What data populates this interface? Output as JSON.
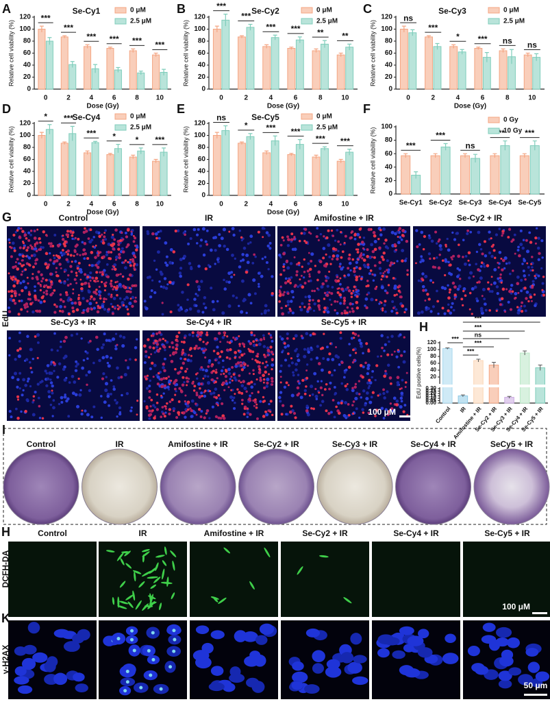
{
  "chart_data": [
    {
      "type": "bar",
      "panel": "A",
      "title": "Se-Cy1",
      "ylabel": "Relative cell viability (%)",
      "xlabel": "Dose (Gy)",
      "categories": [
        "0",
        "2",
        "4",
        "6",
        "8",
        "10"
      ],
      "series": [
        {
          "name": "0 μM",
          "color": "#f4a582",
          "values": [
            100,
            87,
            71,
            68,
            64,
            57
          ],
          "errors": [
            5,
            2,
            3,
            2,
            3,
            3
          ]
        },
        {
          "name": "2.5 μM",
          "color": "#7fcdbb",
          "values": [
            80,
            41,
            34,
            32,
            27,
            28
          ],
          "errors": [
            6,
            5,
            7,
            4,
            3,
            5
          ]
        }
      ],
      "annotations": [
        "***",
        "***",
        "***",
        "***",
        "***",
        "***"
      ],
      "ylim": [
        0,
        120
      ],
      "yticks": [
        0,
        20,
        40,
        60,
        80,
        100,
        120
      ],
      "legend": "upper right"
    },
    {
      "type": "bar",
      "panel": "B",
      "title": "Se-Cy2",
      "ylabel": "Relative cell viability (%)",
      "xlabel": "Dose (Gy)",
      "categories": [
        "0",
        "2",
        "4",
        "6",
        "8",
        "10"
      ],
      "series": [
        {
          "name": "0 μM",
          "color": "#f4a582",
          "values": [
            100,
            87,
            71,
            68,
            64,
            57
          ],
          "errors": [
            5,
            2,
            3,
            2,
            3,
            3
          ]
        },
        {
          "name": "2.5 μM",
          "color": "#7fcdbb",
          "values": [
            115,
            103,
            86,
            82,
            75,
            70
          ],
          "errors": [
            10,
            5,
            4,
            5,
            6,
            5
          ]
        }
      ],
      "annotations": [
        "***",
        "***",
        "***",
        "***",
        "**",
        "**"
      ],
      "ylim": [
        0,
        120
      ],
      "yticks": [
        0,
        20,
        40,
        60,
        80,
        100,
        120
      ],
      "legend": "upper right"
    },
    {
      "type": "bar",
      "panel": "C",
      "title": "Se-Cy3",
      "ylabel": "Relative cell viability (%)",
      "xlabel": "Dose (Gy)",
      "categories": [
        "0",
        "2",
        "4",
        "6",
        "8",
        "10"
      ],
      "series": [
        {
          "name": "0 μM",
          "color": "#f4a582",
          "values": [
            100,
            87,
            71,
            68,
            64,
            57
          ],
          "errors": [
            5,
            2,
            3,
            2,
            3,
            3
          ]
        },
        {
          "name": "2.5 μM",
          "color": "#7fcdbb",
          "values": [
            94,
            71,
            62,
            53,
            54,
            53
          ],
          "errors": [
            5,
            5,
            4,
            8,
            12,
            6
          ]
        }
      ],
      "annotations": [
        "ns",
        "***",
        "*",
        "***",
        "ns",
        "ns"
      ],
      "ylim": [
        0,
        120
      ],
      "yticks": [
        0,
        20,
        40,
        60,
        80,
        100,
        120
      ],
      "legend": "upper right"
    },
    {
      "type": "bar",
      "panel": "D",
      "title": "Se-Cy4",
      "ylabel": "Relative cell viability (%)",
      "xlabel": "Dose (Gy)",
      "categories": [
        "0",
        "2",
        "4",
        "6",
        "8",
        "10"
      ],
      "series": [
        {
          "name": "0 μM",
          "color": "#f4a582",
          "values": [
            100,
            87,
            71,
            68,
            64,
            57
          ],
          "errors": [
            5,
            2,
            3,
            2,
            3,
            3
          ]
        },
        {
          "name": "2.5 μM",
          "color": "#7fcdbb",
          "values": [
            110,
            103,
            88,
            78,
            74,
            72
          ],
          "errors": [
            8,
            12,
            2,
            7,
            5,
            7
          ]
        }
      ],
      "annotations": [
        "*",
        "***",
        "***",
        "*",
        "*",
        "***"
      ],
      "ylim": [
        0,
        120
      ],
      "yticks": [
        0,
        20,
        40,
        60,
        80,
        100,
        120
      ],
      "legend": "upper right"
    },
    {
      "type": "bar",
      "panel": "E",
      "title": "Se-Cy5",
      "ylabel": "Relative cell viability (%)",
      "xlabel": "Dose (Gy)",
      "categories": [
        "0",
        "2",
        "4",
        "6",
        "8",
        "10"
      ],
      "series": [
        {
          "name": "0 μM",
          "color": "#f4a582",
          "values": [
            100,
            87,
            71,
            68,
            64,
            57
          ],
          "errors": [
            5,
            2,
            3,
            2,
            3,
            3
          ]
        },
        {
          "name": "2.5 μM",
          "color": "#7fcdbb",
          "values": [
            108,
            98,
            91,
            85,
            78,
            72
          ],
          "errors": [
            8,
            5,
            8,
            8,
            3,
            5
          ]
        }
      ],
      "annotations": [
        "ns",
        "*",
        "***",
        "***",
        "***",
        "***"
      ],
      "ylim": [
        0,
        120
      ],
      "yticks": [
        0,
        20,
        40,
        60,
        80,
        100,
        120
      ],
      "legend": "upper right"
    },
    {
      "type": "bar",
      "panel": "F",
      "ylabel": "Relative cell viability (%)",
      "categories": [
        "Se-Cy1",
        "Se-Cy2",
        "Se-Cy3",
        "Se-Cy4",
        "Se-Cy5"
      ],
      "series": [
        {
          "name": "0 Gy",
          "color": "#f4a582",
          "values": [
            57,
            57,
            57,
            57,
            57
          ],
          "errors": [
            3,
            3,
            3,
            3,
            3
          ]
        },
        {
          "name": "10 Gy",
          "color": "#7fcdbb",
          "values": [
            28,
            70,
            53,
            72,
            72
          ],
          "errors": [
            5,
            5,
            6,
            7,
            7
          ]
        }
      ],
      "annotations": [
        "***",
        "***",
        "ns",
        "***",
        "***"
      ],
      "ylim": [
        0,
        100
      ],
      "yticks": [
        0,
        20,
        40,
        60,
        80,
        100
      ],
      "legend": "upper right"
    },
    {
      "type": "broken-bar",
      "panel": "H",
      "ylabel": "EdU positive cells(%)",
      "categories": [
        "Control",
        "IR",
        "Amifostine + IR",
        "Se-Cy2 + IR",
        "Se-Cy3 + IR",
        "Se-Cy4 + IR",
        "Se-Cy5 + IR"
      ],
      "values": [
        103,
        0.15,
        68,
        55,
        0.12,
        90,
        47
      ],
      "errors": [
        2,
        0.02,
        4,
        8,
        0.02,
        6,
        8
      ],
      "colors": [
        "#a8d8ef",
        "#8ecae6",
        "#fcd5b5",
        "#f4a582",
        "#c9a8e0",
        "#b8e6c4",
        "#7fcdbb"
      ],
      "annotations": [
        "***",
        "***",
        "***",
        "ns",
        "***",
        "***"
      ],
      "ylim": [
        0,
        120
      ],
      "ybreak": [
        0.3,
        20
      ],
      "yticks": [
        {
          "value": 0,
          "label": "0.00"
        },
        0.05,
        {
          "value": 0.1,
          "label": "0.10"
        },
        0.15,
        {
          "value": 0.2,
          "label": "0.20"
        },
        0.25,
        {
          "value": 0.3,
          "label": "0.30"
        },
        20,
        40,
        60,
        80,
        100,
        120
      ]
    }
  ],
  "figure": {
    "edu": {
      "panel": "G",
      "side_label": "EdU",
      "labels": [
        "Control",
        "IR",
        "Amifostine + IR",
        "Se-Cy2 + IR",
        "Se-Cy3 + IR",
        "Se-Cy4 + IR",
        "Se-Cy5 + IR"
      ],
      "scale_bar": "100 μM"
    },
    "colony": {
      "panel": "I",
      "labels": [
        "Control",
        "IR",
        "Amifostine + IR",
        "Se-Cy2 + IR",
        "Se-Cy3 + IR",
        "Se-Cy4 + IR",
        "SeCy5 + IR"
      ]
    },
    "dcfh": {
      "panel": "H",
      "side_label": "DCFH-DA",
      "labels": [
        "Control",
        "IR",
        "Amifostine + IR",
        "Se-Cy2 + IR",
        "Se-Cy4 + IR",
        "Se-Cy5 + IR"
      ],
      "scale_bar": "100 μM"
    },
    "h2ax": {
      "panel": "K",
      "side_label": "γ-H2AX",
      "scale_bar": "50 μm"
    }
  }
}
